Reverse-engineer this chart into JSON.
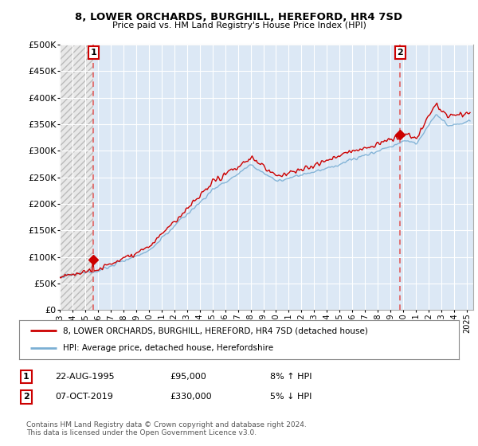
{
  "title": "8, LOWER ORCHARDS, BURGHILL, HEREFORD, HR4 7SD",
  "subtitle": "Price paid vs. HM Land Registry's House Price Index (HPI)",
  "xlim_start": 1993.0,
  "xlim_end": 2025.5,
  "ylim": [
    0,
    500000
  ],
  "yticks": [
    0,
    50000,
    100000,
    150000,
    200000,
    250000,
    300000,
    350000,
    400000,
    450000,
    500000
  ],
  "ytick_labels": [
    "£0",
    "£50K",
    "£100K",
    "£150K",
    "£200K",
    "£250K",
    "£300K",
    "£350K",
    "£400K",
    "£450K",
    "£500K"
  ],
  "sale1_x": 1995.64,
  "sale1_y": 95000,
  "sale1_label": "1",
  "sale2_x": 2019.77,
  "sale2_y": 330000,
  "sale2_label": "2",
  "hpi_color": "#7bafd4",
  "sold_color": "#cc0000",
  "dashed_color": "#e06060",
  "plot_bg_color": "#dce8f5",
  "hatch_color": "#c8c8c8",
  "legend_line1": "8, LOWER ORCHARDS, BURGHILL, HEREFORD, HR4 7SD (detached house)",
  "legend_line2": "HPI: Average price, detached house, Herefordshire",
  "table_row1_num": "1",
  "table_row1_date": "22-AUG-1995",
  "table_row1_price": "£95,000",
  "table_row1_hpi": "8% ↑ HPI",
  "table_row2_num": "2",
  "table_row2_date": "07-OCT-2019",
  "table_row2_price": "£330,000",
  "table_row2_hpi": "5% ↓ HPI",
  "footer": "Contains HM Land Registry data © Crown copyright and database right 2024.\nThis data is licensed under the Open Government Licence v3.0."
}
